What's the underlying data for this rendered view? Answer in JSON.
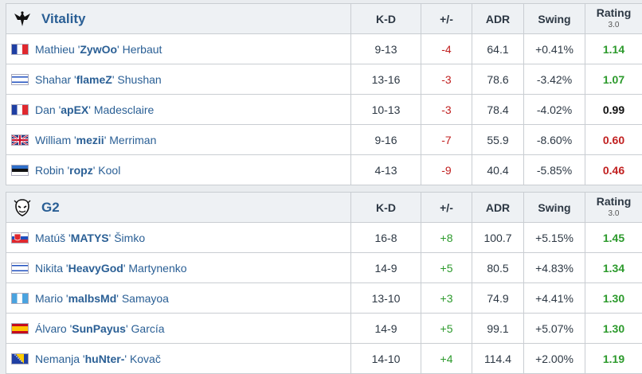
{
  "headers": {
    "kd": "K-D",
    "pm": "+/-",
    "adr": "ADR",
    "swing": "Swing",
    "rating": "Rating",
    "rating_version": "3.0"
  },
  "teams": [
    {
      "name": "Vitality",
      "logo_icon": "vitality-bee-icon",
      "players": [
        {
          "first": "Mathieu",
          "nick": "ZywOo",
          "last": "Herbaut",
          "flag": "france-flag-icon",
          "kd": "9-13",
          "pm": "-4",
          "adr": "64.1",
          "swing": "+0.41%",
          "rating": "1.14"
        },
        {
          "first": "Shahar",
          "nick": "flameZ",
          "last": "Shushan",
          "flag": "israel-flag-icon",
          "kd": "13-16",
          "pm": "-3",
          "adr": "78.6",
          "swing": "-3.42%",
          "rating": "1.07"
        },
        {
          "first": "Dan",
          "nick": "apEX",
          "last": "Madesclaire",
          "flag": "france-flag-icon",
          "kd": "10-13",
          "pm": "-3",
          "adr": "78.4",
          "swing": "-4.02%",
          "rating": "0.99"
        },
        {
          "first": "William",
          "nick": "mezii",
          "last": "Merriman",
          "flag": "uk-flag-icon",
          "kd": "9-16",
          "pm": "-7",
          "adr": "55.9",
          "swing": "-8.60%",
          "rating": "0.60"
        },
        {
          "first": "Robin",
          "nick": "ropz",
          "last": "Kool",
          "flag": "estonia-flag-icon",
          "kd": "4-13",
          "pm": "-9",
          "adr": "40.4",
          "swing": "-5.85%",
          "rating": "0.46"
        }
      ]
    },
    {
      "name": "G2",
      "logo_icon": "g2-samurai-icon",
      "players": [
        {
          "first": "Matúš",
          "nick": "MATYS",
          "last": "Šimko",
          "flag": "slovakia-flag-icon",
          "kd": "16-8",
          "pm": "+8",
          "adr": "100.7",
          "swing": "+5.15%",
          "rating": "1.45"
        },
        {
          "first": "Nikita",
          "nick": "HeavyGod",
          "last": "Martynenko",
          "flag": "israel-flag-icon",
          "kd": "14-9",
          "pm": "+5",
          "adr": "80.5",
          "swing": "+4.83%",
          "rating": "1.34"
        },
        {
          "first": "Mario",
          "nick": "malbsMd",
          "last": "Samayoa",
          "flag": "guatemala-flag-icon",
          "kd": "13-10",
          "pm": "+3",
          "adr": "74.9",
          "swing": "+4.41%",
          "rating": "1.30"
        },
        {
          "first": "Álvaro",
          "nick": "SunPayus",
          "last": "García",
          "flag": "spain-flag-icon",
          "kd": "14-9",
          "pm": "+5",
          "adr": "99.1",
          "swing": "+5.07%",
          "rating": "1.30"
        },
        {
          "first": "Nemanja",
          "nick": "huNter-",
          "last": "Kovač",
          "flag": "bosnia-flag-icon",
          "kd": "14-10",
          "pm": "+4",
          "adr": "114.4",
          "swing": "+2.00%",
          "rating": "1.19"
        }
      ]
    }
  ],
  "colors": {
    "positive": "#2c9a2c",
    "negative": "#c12020",
    "neutral": "#111111",
    "link": "#2a5f95"
  }
}
